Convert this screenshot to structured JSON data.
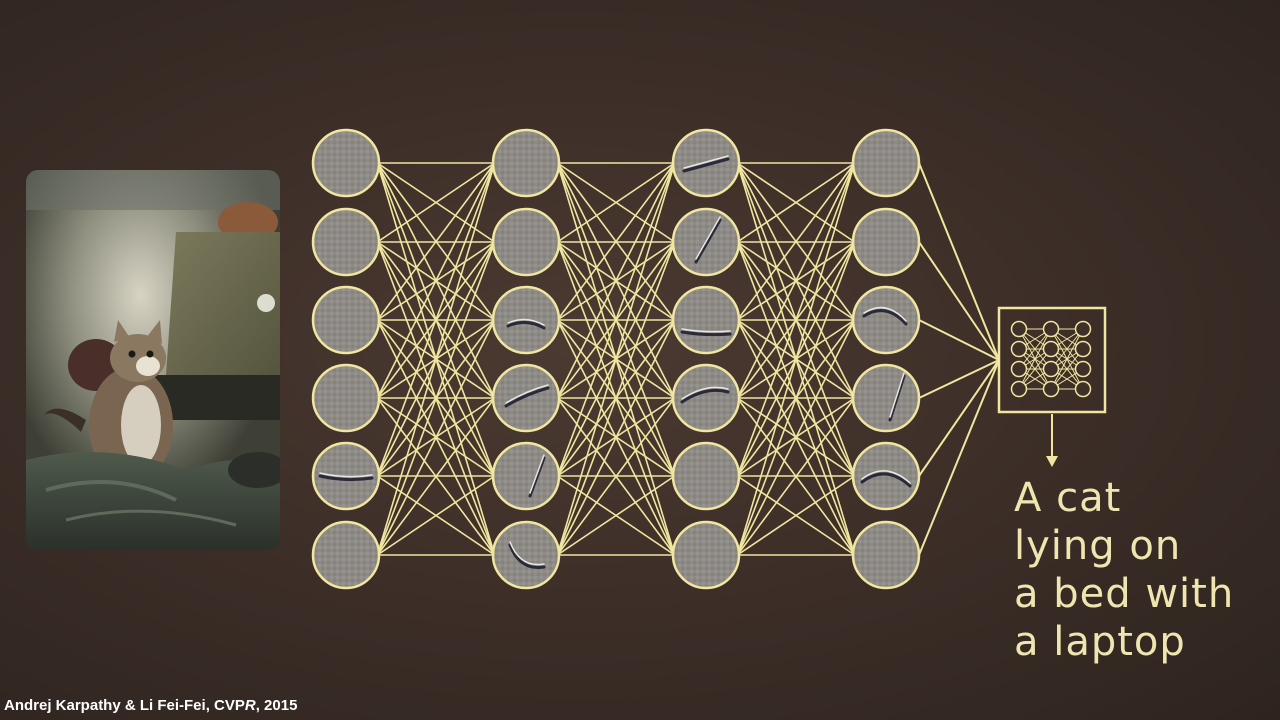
{
  "caption": {
    "lines": [
      "A cat",
      "lying on",
      "a bed with",
      "a laptop"
    ]
  },
  "credit": {
    "authors": "Andrej Karpathy & Li Fei-Fei, ",
    "venue_prefix": "CVP",
    "venue_italic": "R",
    "year": ", 2015"
  },
  "colors": {
    "line": "#f0e6a0",
    "node_fill": "#8e8a84",
    "background": "#3f3029"
  },
  "network": {
    "layers": 4,
    "nodes_per_layer": 6,
    "output_box_icon": "mini-network-icon"
  },
  "photo": {
    "subject": "cat-on-bed-with-laptop-photo"
  }
}
